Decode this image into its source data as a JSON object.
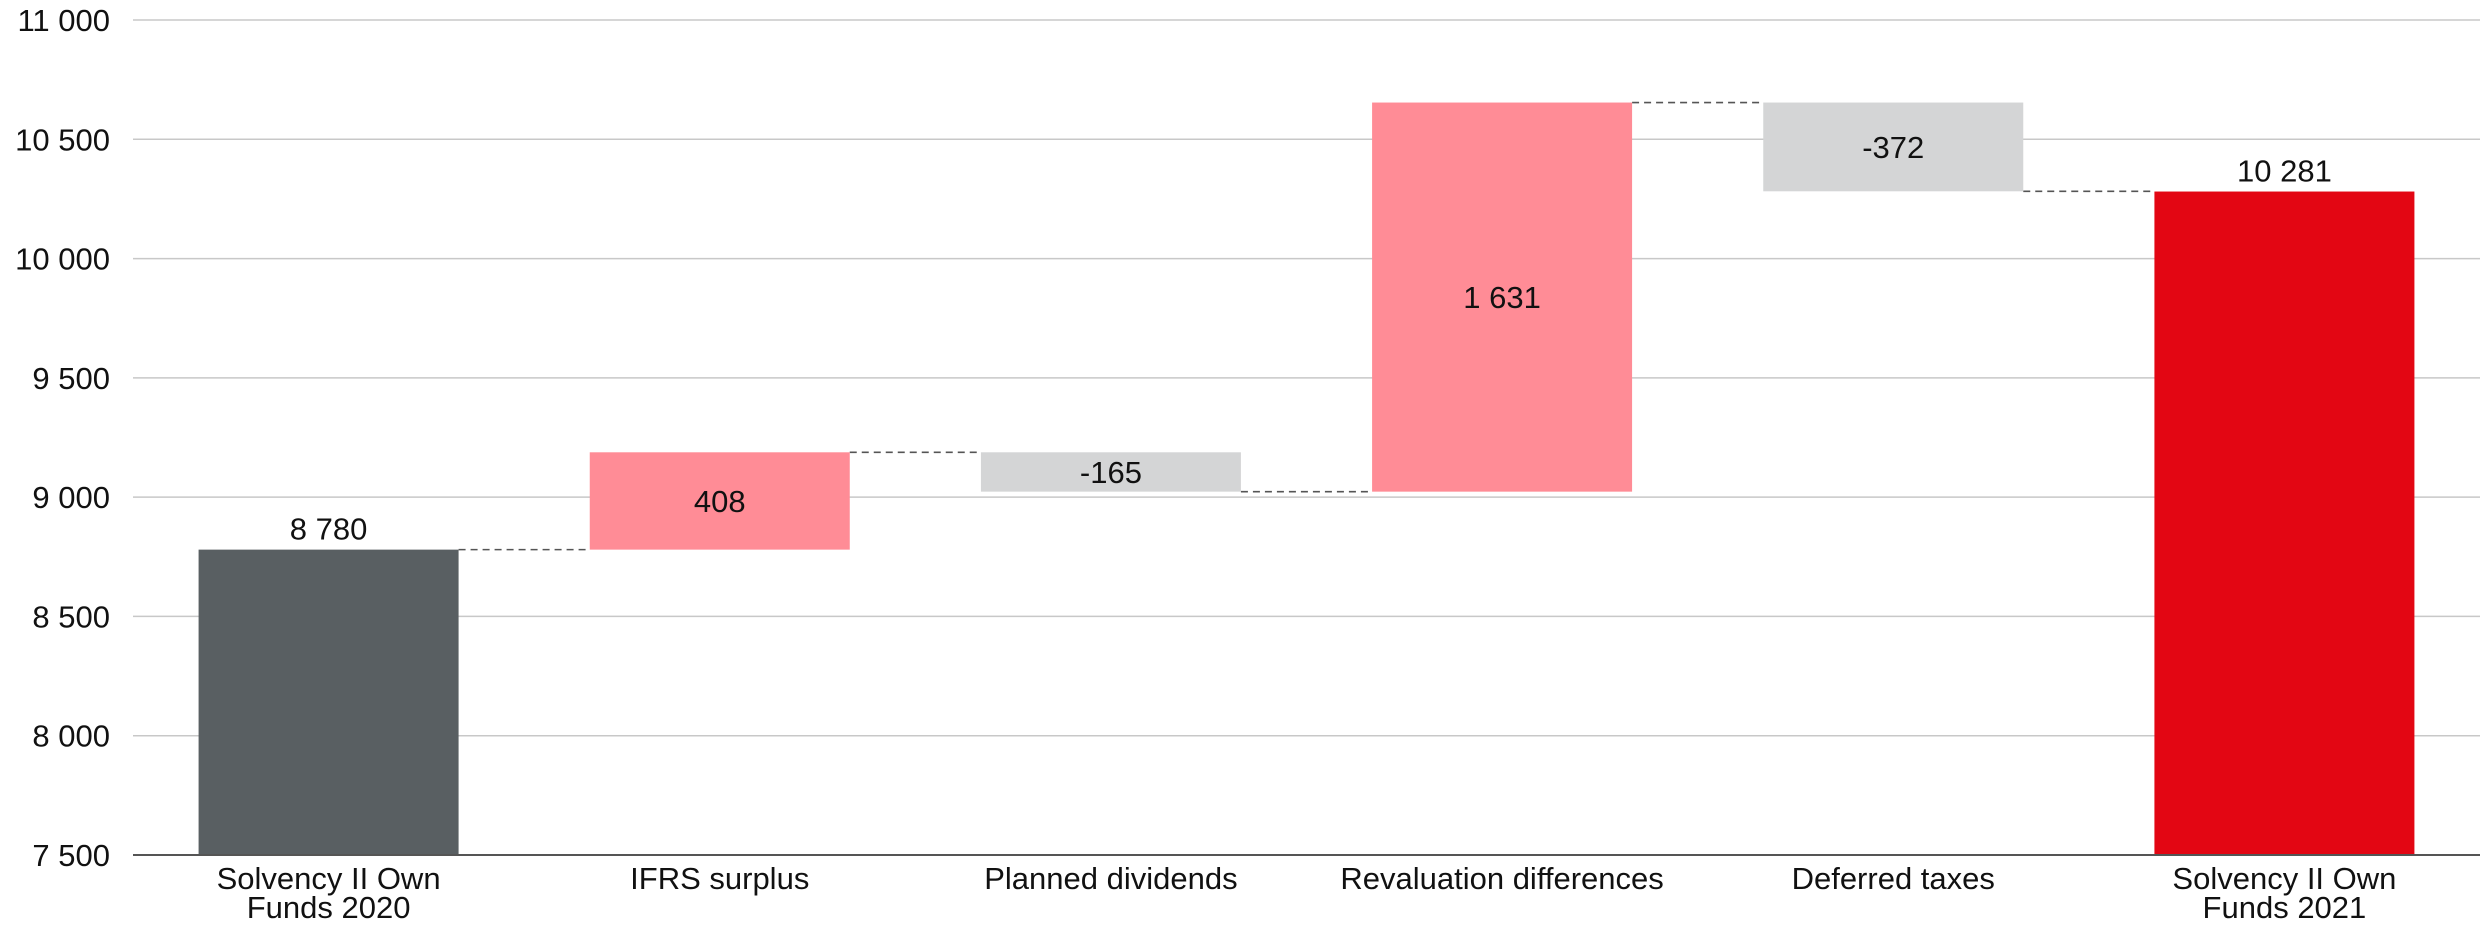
{
  "chart_data": {
    "type": "waterfall",
    "title": "",
    "xlabel": "",
    "ylabel": "",
    "ylim": [
      7500,
      11000
    ],
    "yticks": [
      7500,
      8000,
      8500,
      9000,
      9500,
      10000,
      10500,
      11000
    ],
    "ytick_labels": [
      "7 500",
      "8 000",
      "8 500",
      "9 000",
      "9 500",
      "10 000",
      "10 500",
      "11 000"
    ],
    "grid": true,
    "legend": "none",
    "categories": [
      [
        "Solvency II Own",
        "Funds 2020"
      ],
      [
        "IFRS surplus"
      ],
      [
        "Planned dividends"
      ],
      [
        "Revaluation differences"
      ],
      [
        "Deferred taxes"
      ],
      [
        "Solvency II Own",
        "Funds 2021"
      ]
    ],
    "bars": [
      {
        "kind": "total",
        "start": 7500,
        "end": 8780,
        "value": 8780,
        "label": "8 780",
        "color": "#595f62",
        "label_pos": "above"
      },
      {
        "kind": "delta",
        "start": 8780,
        "end": 9188,
        "value": 408,
        "label": "408",
        "color": "#ff8c96",
        "label_pos": "inside"
      },
      {
        "kind": "delta",
        "start": 9188,
        "end": 9023,
        "value": -165,
        "label": "-165",
        "color": "#d4d5d6",
        "label_pos": "inside"
      },
      {
        "kind": "delta",
        "start": 9023,
        "end": 10654,
        "value": 1631,
        "label": "1 631",
        "color": "#ff8c96",
        "label_pos": "inside"
      },
      {
        "kind": "delta",
        "start": 10654,
        "end": 10282,
        "value": -372,
        "label": "-372",
        "color": "#d4d5d6",
        "label_pos": "inside"
      },
      {
        "kind": "total",
        "start": 7500,
        "end": 10281,
        "value": 10281,
        "label": "10 281",
        "color": "#e30613",
        "label_pos": "above"
      }
    ],
    "colors": {
      "grid": "#c8c8c8",
      "axis": "#555555",
      "connector": "#555555"
    }
  }
}
